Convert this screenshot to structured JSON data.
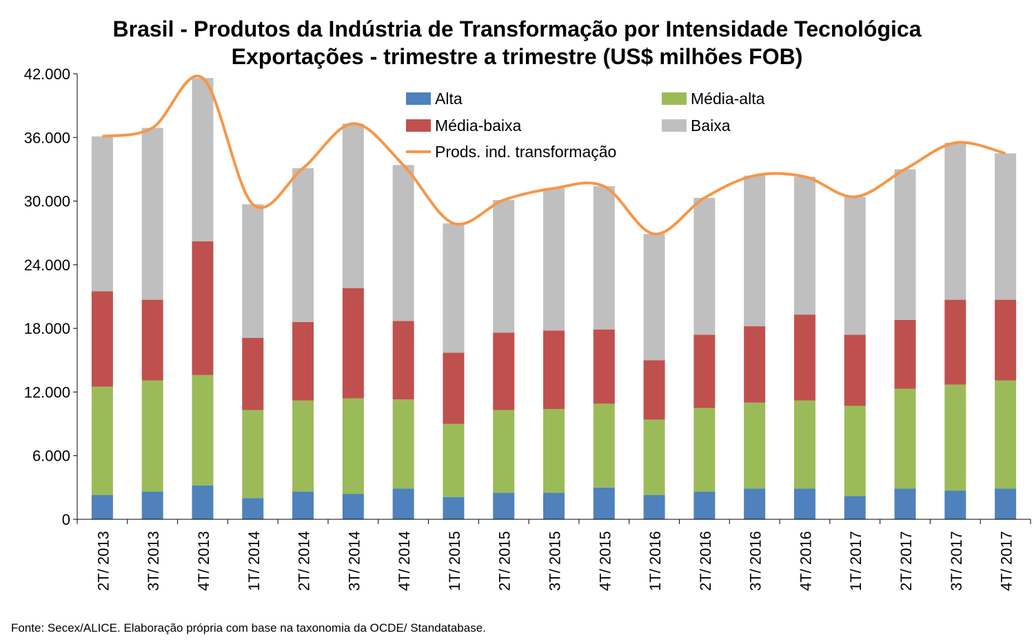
{
  "title_line1": "Brasil - Produtos da Indústria de Transformação por Intensidade Tecnológica",
  "title_line2": "Exportações - trimestre a trimestre (US$ milhões FOB)",
  "source": "Fonte: Secex/ALICE. Elaboração própria com base na taxonomia da OCDE/ Standatabase.",
  "chart_data": {
    "type": "bar",
    "stacked": true,
    "categories": [
      "2T/ 2013",
      "3T/ 2013",
      "4T/ 2013",
      "1T/ 2014",
      "2T/ 2014",
      "3T/ 2014",
      "4T/ 2014",
      "1T/ 2015",
      "2T/ 2015",
      "3T/ 2015",
      "4T/ 2015",
      "1T/ 2016",
      "2T/ 2016",
      "3T/ 2016",
      "4T/ 2016",
      "1T/ 2017",
      "2T/ 2017",
      "3T/ 2017",
      "4T/ 2017"
    ],
    "series": [
      {
        "name": "Alta",
        "color": "#4f81bd",
        "values": [
          2300,
          2600,
          3200,
          2000,
          2600,
          2400,
          2900,
          2100,
          2500,
          2500,
          3000,
          2300,
          2600,
          2900,
          2900,
          2200,
          2900,
          2700,
          2900
        ]
      },
      {
        "name": "Média-alta",
        "color": "#9bbb59",
        "values": [
          10200,
          10500,
          10400,
          8300,
          8600,
          9000,
          8400,
          6900,
          7800,
          7900,
          7900,
          7100,
          7900,
          8100,
          8300,
          8500,
          9400,
          10000,
          10200
        ]
      },
      {
        "name": "Média-baixa",
        "color": "#c0504d",
        "values": [
          9000,
          7600,
          12600,
          6800,
          7400,
          10400,
          7400,
          6700,
          7300,
          7400,
          7000,
          5600,
          6900,
          7200,
          8100,
          6700,
          6500,
          8000,
          7600
        ]
      },
      {
        "name": "Baixa",
        "color": "#bfbfbf",
        "values": [
          14600,
          16200,
          15400,
          12600,
          14500,
          15500,
          14700,
          12200,
          12500,
          13400,
          13500,
          11900,
          12900,
          14200,
          13000,
          13000,
          14200,
          14800,
          13800
        ]
      }
    ],
    "line": {
      "name": "Prods. ind. transformação",
      "color": "#f79646",
      "values": [
        36100,
        36900,
        41600,
        29700,
        33100,
        37300,
        33400,
        27900,
        30100,
        31200,
        31400,
        26900,
        30300,
        32400,
        32300,
        30400,
        33000,
        35500,
        34500
      ]
    },
    "yticks": [
      "0",
      "6.000",
      "12.000",
      "18.000",
      "24.000",
      "30.000",
      "36.000",
      "42.000"
    ],
    "ylim": [
      0,
      42000
    ],
    "grid": false,
    "legend_position": "top-inside"
  }
}
